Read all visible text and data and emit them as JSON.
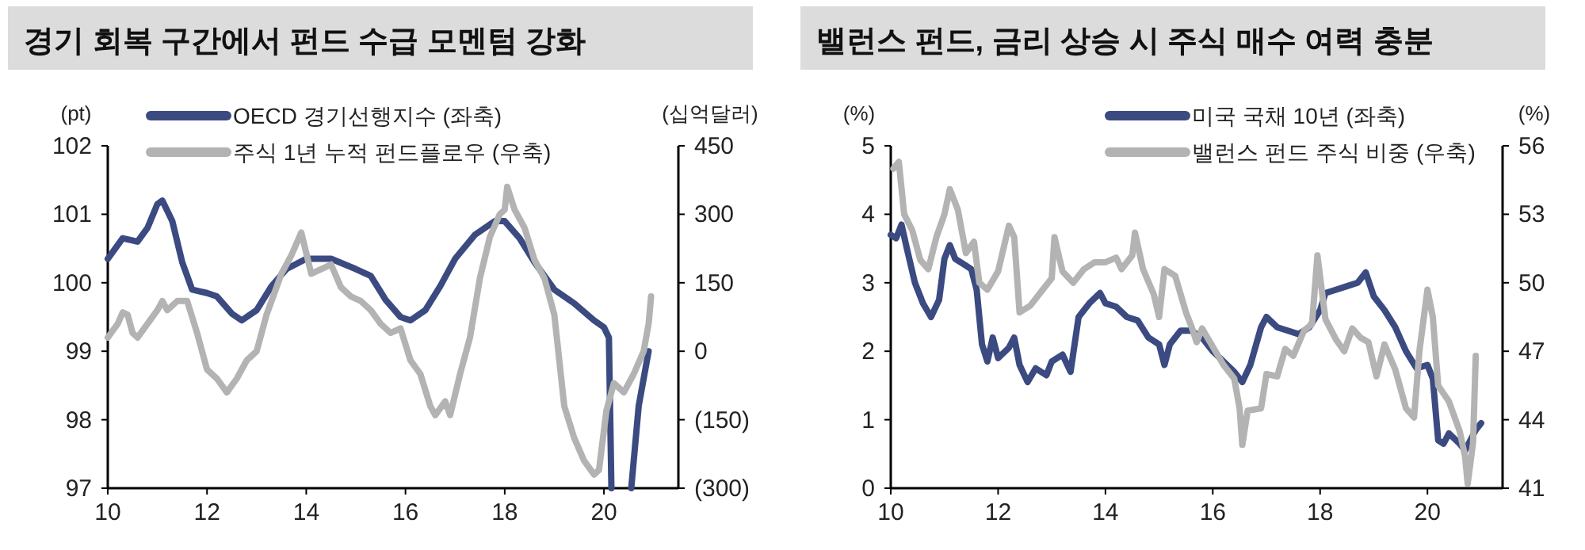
{
  "chart_data": [
    {
      "type": "line",
      "title": "경기 회복 구간에서 펀드 수급 모멘텀 강화",
      "ylabel": "(pt)",
      "y2label": "(십억달러)",
      "xlim": [
        10,
        21.5
      ],
      "xticks": [
        10,
        12,
        14,
        16,
        18,
        20
      ],
      "ylim": [
        97,
        102
      ],
      "yticks": [
        97,
        98,
        99,
        100,
        101,
        102
      ],
      "y2lim": [
        -300,
        450
      ],
      "y2ticks": [
        {
          "value": -300,
          "label": "(300)"
        },
        {
          "value": -150,
          "label": "(150)"
        },
        0,
        150,
        300,
        450
      ],
      "legend": "top left",
      "grid": false,
      "marker": "none",
      "line_style": "solid",
      "series": [
        {
          "name": "OECD 경기선행지수 (좌축)",
          "color": "#3b4a80",
          "x": [
            10.0,
            10.3,
            10.6,
            10.8,
            11.0,
            11.1,
            11.3,
            11.5,
            11.7,
            12.0,
            12.2,
            12.5,
            12.7,
            13.0,
            13.3,
            13.6,
            14.0,
            14.5,
            15.0,
            15.3,
            15.6,
            15.9,
            16.1,
            16.4,
            16.7,
            17.0,
            17.4,
            17.8,
            18.0,
            18.3,
            18.6,
            19.0,
            19.4,
            19.8,
            20.0,
            20.1,
            20.15,
            20.3,
            20.55,
            20.7,
            20.9
          ],
          "values": [
            100.35,
            100.65,
            100.6,
            100.8,
            101.15,
            101.2,
            100.9,
            100.3,
            99.9,
            99.85,
            99.8,
            99.55,
            99.45,
            99.6,
            99.95,
            100.2,
            100.35,
            100.35,
            100.2,
            100.1,
            99.75,
            99.5,
            99.45,
            99.6,
            99.95,
            100.35,
            100.7,
            100.9,
            100.9,
            100.65,
            100.3,
            99.9,
            99.7,
            99.45,
            99.35,
            99.2,
            97,
            null,
            97,
            98.2,
            99.0
          ]
        },
        {
          "name": "주식 1년 누적 펀드플로우 (우축)",
          "color": "#b3b3b3",
          "axis": "y2",
          "x": [
            10.0,
            10.2,
            10.3,
            10.4,
            10.5,
            10.6,
            10.8,
            11.0,
            11.1,
            11.2,
            11.4,
            11.6,
            11.8,
            12.0,
            12.2,
            12.4,
            12.6,
            12.8,
            13.0,
            13.2,
            13.5,
            13.7,
            13.9,
            14.1,
            14.3,
            14.5,
            14.7,
            14.9,
            15.1,
            15.3,
            15.5,
            15.7,
            15.9,
            16.1,
            16.3,
            16.5,
            16.6,
            16.8,
            16.9,
            17.1,
            17.3,
            17.5,
            17.7,
            17.9,
            18.0,
            18.05,
            18.2,
            18.4,
            18.6,
            18.8,
            19.0,
            19.2,
            19.4,
            19.6,
            19.8,
            19.9,
            20.05,
            20.2,
            20.4,
            20.6,
            20.8,
            20.9,
            20.95
          ],
          "values": [
            30,
            60,
            85,
            80,
            40,
            30,
            60,
            90,
            110,
            90,
            110,
            110,
            40,
            -40,
            -60,
            -90,
            -60,
            -20,
            0,
            80,
            170,
            210,
            260,
            170,
            180,
            190,
            140,
            120,
            110,
            90,
            60,
            40,
            50,
            -20,
            -50,
            -120,
            -140,
            -110,
            -140,
            -50,
            30,
            160,
            250,
            300,
            310,
            360,
            310,
            270,
            200,
            160,
            80,
            -120,
            -190,
            -240,
            -270,
            -260,
            -130,
            -70,
            -90,
            -50,
            0,
            60,
            120
          ]
        }
      ]
    },
    {
      "type": "line",
      "title": "밸런스 펀드, 금리 상승 시 주식 매수 여력 충분",
      "ylabel": "(%)",
      "y2label": "(%)",
      "xlim": [
        10,
        21.4
      ],
      "xticks": [
        10,
        12,
        14,
        16,
        18,
        20
      ],
      "ylim": [
        0,
        5
      ],
      "yticks": [
        0,
        1,
        2,
        3,
        4,
        5
      ],
      "y2lim": [
        41,
        56
      ],
      "y2ticks": [
        41,
        44,
        47,
        50,
        53,
        56
      ],
      "legend": "top right",
      "grid": false,
      "marker": "none",
      "line_style": "solid",
      "series": [
        {
          "name": "미국 국채 10년 (좌축)",
          "color": "#3b4a80",
          "x": [
            10.0,
            10.1,
            10.2,
            10.3,
            10.45,
            10.6,
            10.75,
            10.9,
            11.0,
            11.1,
            11.2,
            11.4,
            11.5,
            11.6,
            11.7,
            11.8,
            11.9,
            12.0,
            12.2,
            12.3,
            12.4,
            12.55,
            12.7,
            12.9,
            13.0,
            13.2,
            13.35,
            13.5,
            13.7,
            13.9,
            14.0,
            14.2,
            14.4,
            14.6,
            14.8,
            15.0,
            15.1,
            15.2,
            15.4,
            15.6,
            15.8,
            16.0,
            16.2,
            16.4,
            16.55,
            16.7,
            16.9,
            17.0,
            17.2,
            17.4,
            17.6,
            17.8,
            18.0,
            18.1,
            18.3,
            18.5,
            18.7,
            18.85,
            19.0,
            19.2,
            19.4,
            19.6,
            19.8,
            20.0,
            20.1,
            20.2,
            20.3,
            20.4,
            20.6,
            20.7,
            20.8,
            20.9,
            21.0
          ],
          "values": [
            3.7,
            3.65,
            3.85,
            3.5,
            3.0,
            2.7,
            2.5,
            2.75,
            3.35,
            3.55,
            3.35,
            3.25,
            3.2,
            2.9,
            2.1,
            1.85,
            2.2,
            1.9,
            2.05,
            2.2,
            1.8,
            1.55,
            1.75,
            1.65,
            1.85,
            1.95,
            1.7,
            2.5,
            2.7,
            2.85,
            2.7,
            2.65,
            2.5,
            2.45,
            2.2,
            2.1,
            1.8,
            2.1,
            2.3,
            2.3,
            2.2,
            2.0,
            1.85,
            1.7,
            1.55,
            1.8,
            2.35,
            2.5,
            2.35,
            2.3,
            2.25,
            2.35,
            2.6,
            2.85,
            2.9,
            2.95,
            3.0,
            3.15,
            2.8,
            2.6,
            2.35,
            2.0,
            1.75,
            1.8,
            1.6,
            0.7,
            0.65,
            0.8,
            0.65,
            0.55,
            0.7,
            0.85,
            0.95
          ]
        },
        {
          "name": "밸런스 펀드 주식 비중 (우축)",
          "color": "#b3b3b3",
          "axis": "y2",
          "x": [
            10.05,
            10.15,
            10.25,
            10.4,
            10.55,
            10.7,
            10.85,
            11.0,
            11.1,
            11.25,
            11.4,
            11.55,
            11.65,
            11.8,
            12.0,
            12.2,
            12.3,
            12.4,
            12.6,
            12.8,
            13.0,
            13.05,
            13.2,
            13.4,
            13.6,
            13.8,
            14.0,
            14.2,
            14.3,
            14.5,
            14.55,
            14.7,
            14.9,
            15.0,
            15.1,
            15.3,
            15.5,
            15.6,
            15.7,
            15.8,
            16.0,
            16.2,
            16.4,
            16.5,
            16.55,
            16.65,
            16.9,
            17.0,
            17.2,
            17.35,
            17.5,
            17.7,
            17.85,
            17.95,
            18.1,
            18.3,
            18.45,
            18.6,
            18.75,
            18.9,
            19.05,
            19.2,
            19.4,
            19.6,
            19.75,
            19.85,
            20.0,
            20.1,
            20.2,
            20.4,
            20.6,
            20.7,
            20.75,
            20.85,
            20.9
          ],
          "values": [
            55.0,
            55.3,
            53.0,
            52.3,
            51.0,
            50.6,
            52.0,
            53.0,
            54.1,
            53.2,
            51.3,
            51.8,
            50.0,
            49.7,
            50.5,
            52.5,
            52.0,
            48.7,
            49.0,
            49.6,
            50.2,
            52.0,
            50.5,
            50.0,
            50.6,
            50.9,
            50.9,
            51.1,
            50.6,
            51.2,
            52.2,
            50.6,
            49.5,
            48.5,
            50.6,
            50.3,
            48.7,
            48.1,
            47.4,
            48.0,
            47.2,
            46.4,
            45.8,
            44.5,
            42.9,
            44.4,
            44.5,
            46.0,
            45.9,
            47.1,
            46.8,
            47.9,
            48.2,
            51.2,
            48.4,
            47.5,
            47.0,
            48.0,
            47.6,
            47.4,
            45.9,
            47.3,
            46.2,
            44.5,
            44.1,
            47.0,
            49.7,
            48.5,
            45.5,
            44.8,
            43.5,
            42.4,
            41.2,
            43.0,
            46.8
          ]
        }
      ]
    }
  ]
}
